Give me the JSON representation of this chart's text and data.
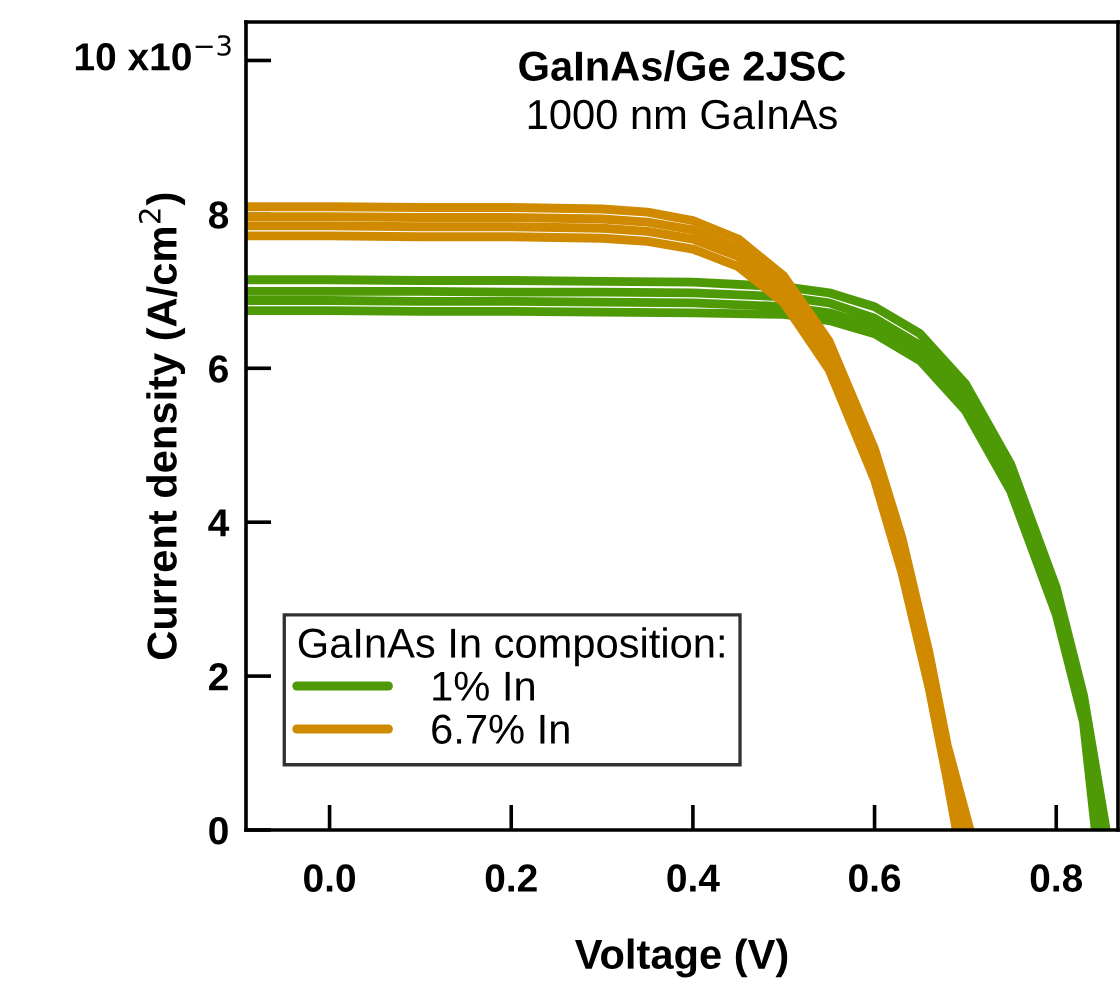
{
  "chart_data": {
    "type": "line",
    "title": "GaInAs/Ge 2JSC",
    "subtitle": "1000 nm GaInAs",
    "xlabel": "Voltage (V)",
    "ylabel": "Current density (A/cm$^{2}$)",
    "legend_title": "GaInAs In composition:",
    "xlim": [
      -0.092,
      0.868
    ],
    "xticks": [
      {
        "value": 0,
        "label": "0.0"
      },
      0.2,
      0.4,
      0.6,
      0.8
    ],
    "ylim": [
      0,
      10.5
    ],
    "yticks": [
      0,
      2,
      4,
      6,
      8,
      {
        "value": 10,
        "label": null
      }
    ],
    "annotations": [
      "10 x10$^{−3}$"
    ],
    "grid": false,
    "legend": "bottom left",
    "marker": "none",
    "line_style": "solid",
    "series": [
      {
        "name": "1% In",
        "color": "#4e9a06",
        "x": [
          -0.09,
          0,
          0.1,
          0.2,
          0.3,
          0.4,
          0.5,
          0.55,
          0.6,
          0.65,
          0.7,
          0.75,
          0.8,
          0.83,
          0.855
        ],
        "values": [
          7.15,
          7.15,
          7.14,
          7.14,
          7.13,
          7.12,
          7.06,
          6.98,
          6.8,
          6.45,
          5.8,
          4.75,
          3.15,
          1.75,
          0
        ]
      },
      {
        "color": "#4e9a06",
        "x": [
          -0.09,
          0,
          0.1,
          0.2,
          0.3,
          0.4,
          0.5,
          0.55,
          0.6,
          0.65,
          0.7,
          0.75,
          0.8,
          0.83,
          0.85
        ],
        "values": [
          7.0,
          7.0,
          7.0,
          6.99,
          6.99,
          6.98,
          6.93,
          6.85,
          6.65,
          6.3,
          5.65,
          4.6,
          3.0,
          1.6,
          0
        ]
      },
      {
        "color": "#4e9a06",
        "x": [
          -0.09,
          0,
          0.1,
          0.2,
          0.3,
          0.4,
          0.5,
          0.55,
          0.6,
          0.65,
          0.7,
          0.75,
          0.8,
          0.83,
          0.847
        ],
        "values": [
          6.88,
          6.88,
          6.87,
          6.87,
          6.86,
          6.85,
          6.8,
          6.72,
          6.55,
          6.2,
          5.55,
          4.5,
          2.9,
          1.5,
          0
        ]
      },
      {
        "color": "#4e9a06",
        "x": [
          -0.09,
          0,
          0.1,
          0.2,
          0.3,
          0.4,
          0.5,
          0.55,
          0.6,
          0.65,
          0.7,
          0.75,
          0.8,
          0.83,
          0.843
        ],
        "values": [
          6.75,
          6.75,
          6.74,
          6.74,
          6.73,
          6.72,
          6.7,
          6.62,
          6.45,
          6.1,
          5.45,
          4.4,
          2.8,
          1.4,
          0
        ]
      },
      {
        "name": "6.7% In",
        "color": "#d08a00",
        "x": [
          -0.09,
          0,
          0.1,
          0.2,
          0.3,
          0.35,
          0.4,
          0.45,
          0.5,
          0.55,
          0.6,
          0.63,
          0.66,
          0.68,
          0.705
        ],
        "values": [
          8.1,
          8.1,
          8.09,
          8.09,
          8.07,
          8.03,
          7.92,
          7.68,
          7.2,
          6.35,
          4.95,
          3.8,
          2.3,
          1.1,
          0
        ]
      },
      {
        "color": "#d08a00",
        "x": [
          -0.09,
          0,
          0.1,
          0.2,
          0.3,
          0.35,
          0.4,
          0.45,
          0.5,
          0.55,
          0.6,
          0.63,
          0.66,
          0.68,
          0.7
        ],
        "values": [
          7.97,
          7.97,
          7.96,
          7.96,
          7.94,
          7.9,
          7.8,
          7.56,
          7.08,
          6.22,
          4.82,
          3.65,
          2.15,
          0.95,
          0
        ]
      },
      {
        "color": "#d08a00",
        "x": [
          -0.09,
          0,
          0.1,
          0.2,
          0.3,
          0.35,
          0.4,
          0.45,
          0.5,
          0.55,
          0.6,
          0.63,
          0.66,
          0.68,
          0.695
        ],
        "values": [
          7.85,
          7.85,
          7.84,
          7.84,
          7.82,
          7.78,
          7.68,
          7.45,
          6.98,
          6.1,
          4.7,
          3.5,
          2.0,
          0.8,
          0
        ]
      },
      {
        "color": "#d08a00",
        "x": [
          -0.09,
          0,
          0.1,
          0.2,
          0.3,
          0.35,
          0.4,
          0.45,
          0.5,
          0.55,
          0.6,
          0.63,
          0.66,
          0.68,
          0.69
        ],
        "values": [
          7.72,
          7.72,
          7.71,
          7.71,
          7.69,
          7.65,
          7.55,
          7.32,
          6.85,
          5.98,
          4.55,
          3.35,
          1.85,
          0.65,
          0
        ]
      }
    ]
  }
}
